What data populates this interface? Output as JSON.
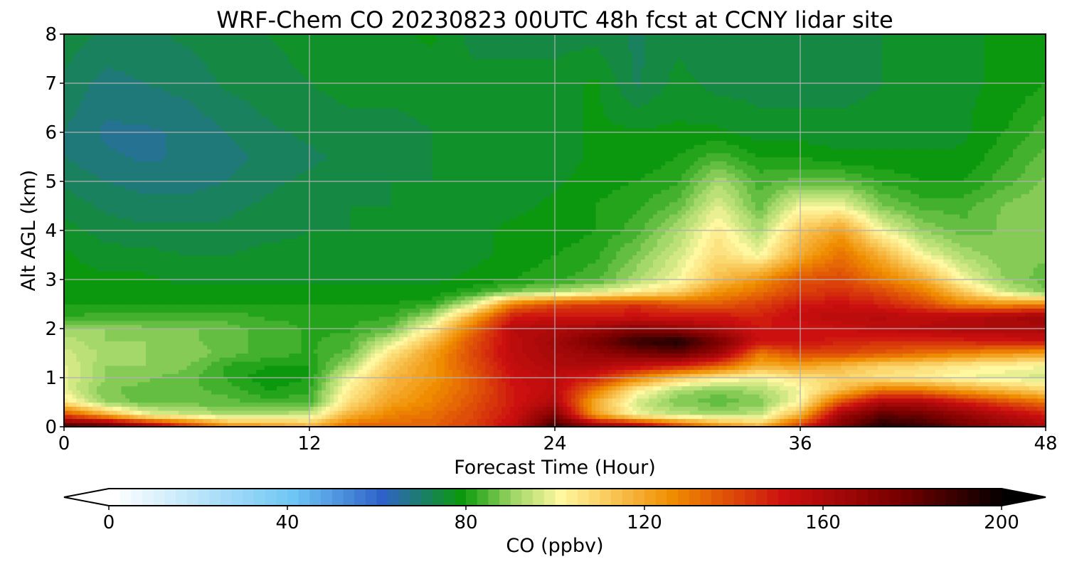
{
  "chart_data": {
    "type": "heatmap",
    "title": "WRF-Chem CO  20230823 00UTC 48h fcst at CCNY lidar site",
    "xlabel": "Forecast Time (Hour)",
    "ylabel": "Alt AGL (km)",
    "xlim": [
      0,
      48
    ],
    "ylim": [
      0,
      8
    ],
    "xticks": [
      "0",
      "12",
      "24",
      "36",
      "48"
    ],
    "yticks": [
      "0",
      "1",
      "2",
      "3",
      "4",
      "5",
      "6",
      "7",
      "8"
    ],
    "grid": true,
    "colorbar": {
      "label": "CO  (ppbv)",
      "min": 0,
      "max": 200,
      "ticks": [
        "0",
        "40",
        "80",
        "120",
        "160",
        "200"
      ],
      "extend": "both",
      "colors": {
        "white": "#ffffff",
        "light_blue": "#6fc6f4",
        "blue": "#2f62c8",
        "green": "#0a9a0a",
        "light_green": "#a5d86a",
        "pale_yellow": "#fff8a0",
        "orange": "#f08c00",
        "red": "#cc1010",
        "dark_red": "#7a0000",
        "black": "#000000"
      }
    },
    "x_hours": [
      0,
      2,
      4,
      6,
      8,
      10,
      12,
      14,
      16,
      18,
      20,
      22,
      24,
      26,
      28,
      30,
      32,
      34,
      36,
      38,
      40,
      42,
      44,
      46,
      48
    ],
    "y_km": [
      0,
      0.25,
      0.5,
      0.75,
      1,
      1.25,
      1.5,
      1.75,
      2,
      2.25,
      2.5,
      2.75,
      3,
      3.5,
      4,
      4.5,
      5,
      5.5,
      6,
      7,
      8
    ],
    "co_ppbv": [
      [
        190,
        188,
        170,
        148,
        128,
        125,
        118,
        135,
        135,
        135,
        142,
        155,
        190,
        172,
        165,
        145,
        128,
        118,
        145,
        175,
        195,
        190,
        178,
        168,
        160
      ],
      [
        140,
        120,
        100,
        96,
        92,
        92,
        96,
        118,
        128,
        132,
        140,
        152,
        175,
        122,
        100,
        94,
        92,
        94,
        118,
        165,
        182,
        178,
        168,
        158,
        150
      ],
      [
        106,
        90,
        86,
        86,
        86,
        84,
        84,
        108,
        122,
        128,
        138,
        150,
        160,
        118,
        96,
        88,
        86,
        88,
        102,
        140,
        162,
        160,
        150,
        140,
        132
      ],
      [
        98,
        88,
        86,
        86,
        84,
        80,
        82,
        104,
        118,
        126,
        136,
        150,
        156,
        130,
        104,
        92,
        88,
        92,
        100,
        115,
        132,
        130,
        122,
        116,
        110
      ],
      [
        98,
        90,
        88,
        86,
        82,
        78,
        80,
        100,
        116,
        124,
        136,
        152,
        156,
        148,
        128,
        112,
        104,
        100,
        106,
        110,
        106,
        104,
        100,
        98,
        96
      ],
      [
        98,
        90,
        90,
        88,
        82,
        80,
        80,
        92,
        112,
        124,
        138,
        154,
        160,
        160,
        155,
        148,
        136,
        118,
        122,
        116,
        110,
        108,
        104,
        102,
        100
      ],
      [
        96,
        92,
        90,
        90,
        86,
        84,
        82,
        86,
        106,
        122,
        140,
        156,
        162,
        168,
        175,
        180,
        166,
        130,
        140,
        140,
        136,
        132,
        128,
        124,
        122
      ],
      [
        94,
        90,
        90,
        88,
        86,
        84,
        82,
        84,
        96,
        115,
        138,
        156,
        164,
        176,
        190,
        196,
        176,
        152,
        152,
        148,
        146,
        146,
        148,
        150,
        152
      ],
      [
        90,
        90,
        88,
        88,
        86,
        84,
        82,
        82,
        86,
        104,
        132,
        158,
        160,
        165,
        172,
        168,
        160,
        150,
        150,
        152,
        156,
        158,
        160,
        160,
        162
      ],
      [
        82,
        84,
        84,
        84,
        84,
        82,
        82,
        82,
        82,
        92,
        120,
        150,
        152,
        150,
        152,
        150,
        150,
        148,
        154,
        158,
        158,
        156,
        158,
        162,
        165
      ],
      [
        80,
        80,
        80,
        80,
        80,
        80,
        80,
        80,
        80,
        82,
        96,
        130,
        140,
        142,
        144,
        138,
        136,
        142,
        150,
        152,
        148,
        140,
        128,
        126,
        128
      ],
      [
        80,
        79,
        78,
        78,
        78,
        78,
        78,
        78,
        78,
        78,
        82,
        88,
        92,
        98,
        104,
        110,
        125,
        132,
        142,
        145,
        140,
        130,
        112,
        96,
        88
      ],
      [
        79,
        78,
        78,
        77,
        77,
        77,
        77,
        77,
        77,
        77,
        78,
        80,
        82,
        84,
        92,
        100,
        115,
        125,
        138,
        140,
        130,
        120,
        100,
        90,
        86
      ],
      [
        78,
        76,
        76,
        75,
        75,
        76,
        76,
        76,
        76,
        77,
        77,
        78,
        80,
        82,
        88,
        96,
        108,
        100,
        120,
        132,
        118,
        100,
        92,
        88,
        88
      ],
      [
        76,
        74,
        73,
        73,
        73,
        74,
        75,
        75,
        76,
        76,
        77,
        78,
        78,
        80,
        84,
        92,
        104,
        92,
        112,
        122,
        100,
        90,
        86,
        88,
        90
      ],
      [
        74,
        72,
        71,
        71,
        72,
        73,
        74,
        75,
        75,
        76,
        76,
        77,
        78,
        80,
        82,
        86,
        98,
        86,
        100,
        100,
        88,
        84,
        84,
        88,
        90
      ],
      [
        72,
        70,
        69,
        69,
        70,
        72,
        73,
        74,
        75,
        75,
        76,
        76,
        77,
        79,
        80,
        82,
        92,
        84,
        86,
        86,
        82,
        80,
        80,
        84,
        88
      ],
      [
        70,
        68,
        67,
        68,
        69,
        71,
        72,
        73,
        74,
        75,
        75,
        76,
        76,
        78,
        78,
        80,
        84,
        80,
        80,
        78,
        78,
        78,
        78,
        82,
        86
      ],
      [
        70,
        67,
        67,
        68,
        70,
        72,
        73,
        74,
        74,
        75,
        75,
        76,
        76,
        78,
        78,
        78,
        78,
        76,
        76,
        76,
        76,
        76,
        77,
        80,
        84
      ],
      [
        72,
        69,
        70,
        71,
        73,
        74,
        75,
        76,
        76,
        76,
        76,
        76,
        76,
        78,
        72,
        76,
        74,
        74,
        74,
        74,
        75,
        76,
        77,
        78,
        80
      ],
      [
        74,
        72,
        72,
        73,
        74,
        75,
        76,
        76,
        77,
        78,
        74,
        74,
        74,
        74,
        72,
        74,
        73,
        74,
        74,
        75,
        75,
        76,
        77,
        78,
        78
      ]
    ]
  }
}
